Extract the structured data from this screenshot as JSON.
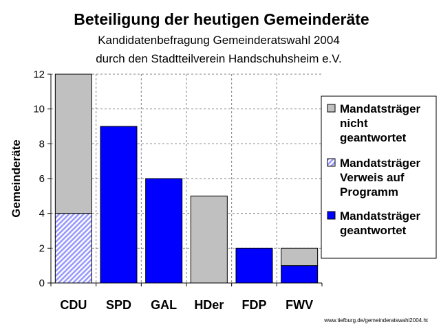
{
  "chart_data": {
    "type": "bar",
    "stacked": true,
    "title": "Beteiligung der heutigen Gemeinderäte",
    "subtitle_lines": [
      "Kandidatenbefragung Gemeinderatswahl 2004",
      "durch den Stadtteilverein Handschuhsheim e.V."
    ],
    "ylabel": "Gemeinderäte",
    "xlabel": "",
    "ylim": [
      0,
      12
    ],
    "yticks": [
      0,
      2,
      4,
      6,
      8,
      10,
      12
    ],
    "grid": true,
    "legend_position": "right",
    "categories": [
      "CDU",
      "SPD",
      "GAL",
      "HDer",
      "FDP",
      "FWV"
    ],
    "series": [
      {
        "key": "answered",
        "name": "Mandatsträger geantwortet",
        "legend_lines": [
          "Mandatsträger",
          "geantwortet"
        ],
        "color": "#0000ff",
        "pattern": "solid",
        "values": [
          0,
          9,
          6,
          0,
          2,
          1
        ]
      },
      {
        "key": "referral",
        "name": "Mandatsträger Verweis auf Programm",
        "legend_lines": [
          "Mandatsträger",
          "Verweis auf",
          "Programm"
        ],
        "color": "#9999ff",
        "pattern": "diagonal-hatch",
        "values": [
          4,
          0,
          0,
          0,
          0,
          0
        ]
      },
      {
        "key": "not_answered",
        "name": "Mandatsträger nicht geantwortet",
        "legend_lines": [
          "Mandatsträger",
          "nicht",
          "geantwortet"
        ],
        "color": "#c0c0c0",
        "pattern": "solid",
        "values": [
          8,
          0,
          0,
          5,
          0,
          1
        ]
      }
    ],
    "legend_order": [
      "not_answered",
      "referral",
      "answered"
    ]
  },
  "source_note": "www.tiefburg.de/gemeinderatswahl2004.ht",
  "colors": {
    "plot_background": "#ffffff",
    "grid": "#808080",
    "axis": "#000000"
  }
}
